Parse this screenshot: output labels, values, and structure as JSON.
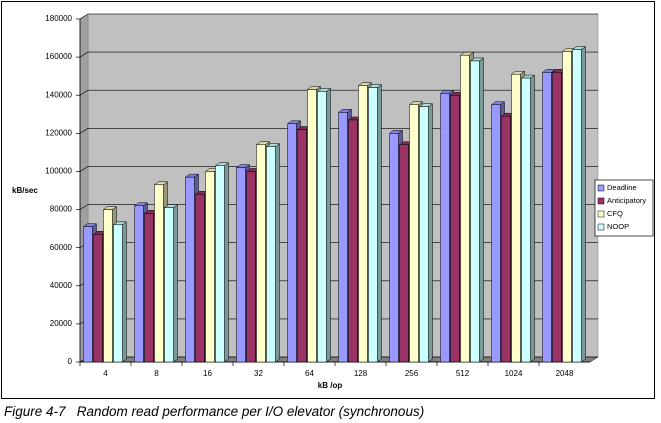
{
  "chart_data": {
    "type": "bar3d",
    "caption": "Figure 4-7   Random read performance per I/O elevator (synchronous)",
    "x_label": "kB /op",
    "y_label": "kB/sec",
    "categories": [
      "4",
      "8",
      "16",
      "32",
      "64",
      "128",
      "256",
      "512",
      "1024",
      "2048"
    ],
    "series": [
      {
        "name": "Deadline",
        "color": "#9999ff",
        "values": [
          71000,
          82000,
          97000,
          102000,
          125000,
          131000,
          120000,
          141000,
          135000,
          152000
        ]
      },
      {
        "name": "Anticipatory",
        "color": "#993366",
        "values": [
          67000,
          78000,
          88000,
          100000,
          122000,
          127000,
          114000,
          140000,
          129000,
          152000
        ]
      },
      {
        "name": "CFQ",
        "color": "#ffffcc",
        "values": [
          80000,
          93000,
          100000,
          114000,
          143000,
          145000,
          135000,
          161000,
          151000,
          163000
        ]
      },
      {
        "name": "NOOP",
        "color": "#ccffff",
        "values": [
          72000,
          81000,
          103000,
          113000,
          142000,
          144000,
          134000,
          158000,
          149000,
          164000
        ]
      }
    ],
    "ylim": [
      0,
      180000
    ],
    "yticks": [
      0,
      20000,
      40000,
      60000,
      80000,
      100000,
      120000,
      140000,
      160000,
      180000
    ],
    "grid": true,
    "legend": "right"
  }
}
